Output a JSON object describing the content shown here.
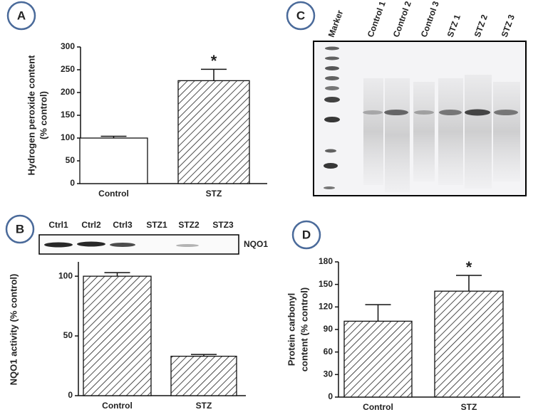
{
  "chart_data": [
    {
      "type": "bar",
      "panel": "A",
      "ylabel": [
        "Hydrogen peroxide content",
        "(% control)"
      ],
      "categories": [
        "Control",
        "STZ"
      ],
      "values": [
        100,
        226
      ],
      "errors": [
        4,
        25
      ],
      "fills": [
        "white",
        "hatch"
      ],
      "ylim": [
        0,
        300
      ],
      "yticks": [
        0,
        50,
        100,
        150,
        200,
        250,
        300
      ],
      "annotations": [
        {
          "text": "*",
          "category": "STZ"
        }
      ]
    },
    {
      "type": "bar",
      "panel": "B",
      "ylabel": [
        "NQO1 activity (% control)"
      ],
      "categories": [
        "Control",
        "STZ"
      ],
      "values": [
        100,
        33
      ],
      "errors": [
        3,
        1.5
      ],
      "fills": [
        "hatch",
        "hatch"
      ],
      "ylim": [
        0,
        112
      ],
      "yticks": [
        0,
        50,
        100
      ],
      "blot": {
        "lanes": [
          "Ctrl1",
          "Ctrl2",
          "Ctrl3",
          "STZ1",
          "STZ2",
          "STZ3"
        ],
        "label": "NQO1"
      }
    },
    {
      "type": "bar",
      "panel": "D",
      "ylabel": [
        "Protein carbonyl",
        "content (% control)"
      ],
      "categories": [
        "Control",
        "STZ"
      ],
      "values": [
        101,
        141
      ],
      "errors": [
        22,
        21
      ],
      "fills": [
        "hatch",
        "hatch"
      ],
      "ylim": [
        0,
        180
      ],
      "yticks": [
        0,
        30,
        60,
        90,
        120,
        150,
        180
      ],
      "annotations": [
        {
          "text": "*",
          "category": "STZ"
        }
      ]
    }
  ],
  "blot_c": {
    "panel": "C",
    "lanes": [
      "Marker",
      "Control 1",
      "Control 2",
      "Control 3",
      "STZ 1",
      "STZ 2",
      "STZ 3"
    ]
  }
}
